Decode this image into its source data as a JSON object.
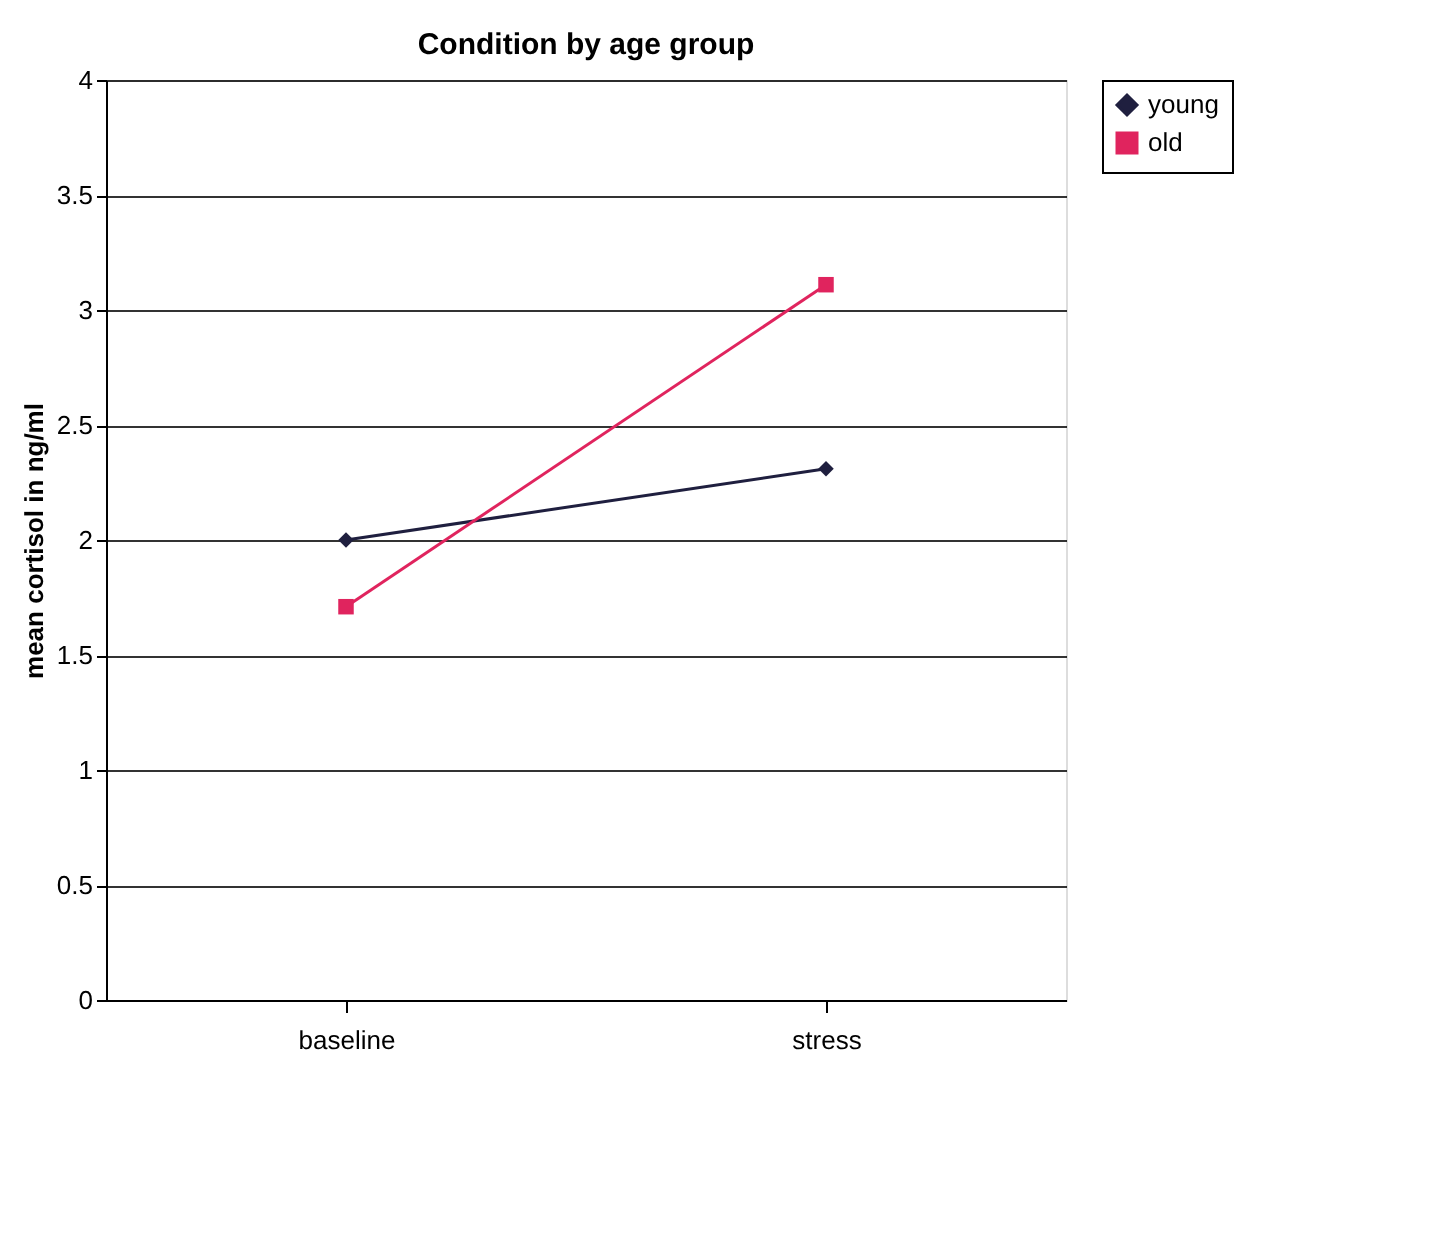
{
  "chart_data": {
    "type": "line",
    "title": "Condition by age group",
    "ylabel": "mean cortisol in ng/ml",
    "categories": [
      "baseline",
      "stress"
    ],
    "series": [
      {
        "name": "young",
        "color": "#1f1f3f",
        "marker": "diamond",
        "values": [
          2.0,
          2.31
        ]
      },
      {
        "name": "old",
        "color": "#e0245e",
        "marker": "square",
        "values": [
          1.71,
          3.11
        ]
      }
    ],
    "ylim": [
      0,
      4
    ],
    "yticks": [
      0,
      0.5,
      1,
      1.5,
      2,
      2.5,
      3,
      3.5,
      4
    ],
    "grid": "y",
    "legend": "right",
    "line_style": "solid"
  }
}
